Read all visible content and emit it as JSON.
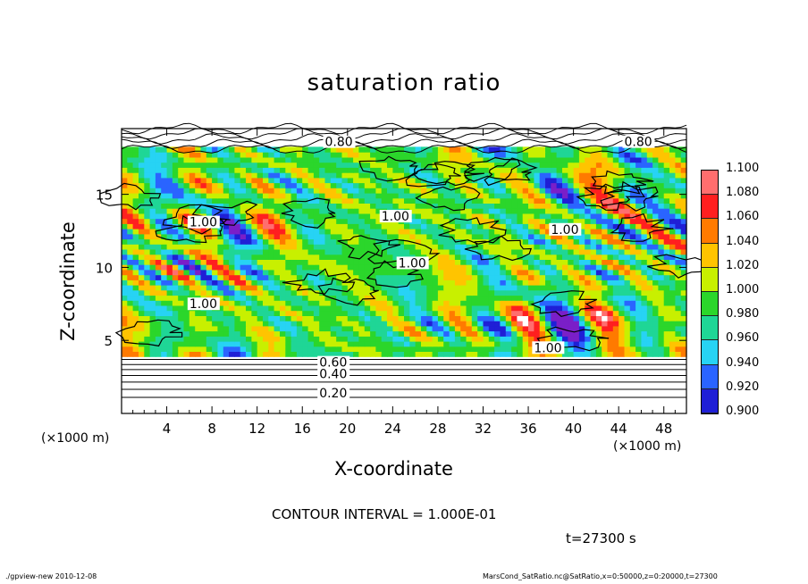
{
  "chart_data": {
    "type": "heatmap",
    "title": "saturation ratio",
    "xlabel": "X-coordinate",
    "ylabel": "Z-coordinate",
    "x_scale_note_left": "(×1000 m)",
    "x_scale_note_right": "(×1000 m)",
    "xlim": [
      0,
      50
    ],
    "ylim": [
      0,
      19.5
    ],
    "x_ticks": [
      "4",
      "8",
      "12",
      "16",
      "20",
      "24",
      "28",
      "32",
      "36",
      "40",
      "44",
      "48"
    ],
    "y_ticks": [
      "5",
      "10",
      "15"
    ],
    "colorbar": {
      "levels": [
        "1.100",
        "1.080",
        "1.060",
        "1.040",
        "1.020",
        "1.000",
        "0.980",
        "0.960",
        "0.940",
        "0.920",
        "0.900"
      ],
      "colors": [
        "#ff6e6e",
        "#ff1f1f",
        "#ff7a00",
        "#ffc400",
        "#c8f000",
        "#2bd62b",
        "#1fd696",
        "#27d3f4",
        "#2a64ff",
        "#1f1fd6",
        "#7a1fc8"
      ]
    },
    "contour_labels": [
      "0.80",
      "0.80",
      "1.00",
      "1.00",
      "1.00",
      "1.00",
      "1.00",
      "1.00",
      "0.60",
      "0.40",
      "0.20"
    ],
    "contour_interval": "CONTOUR INTERVAL = 1.000E-01",
    "time": "t=27300 s"
  },
  "footer": {
    "left": "./gpview-new 2010-12-08",
    "right": "MarsCond_SatRatio.nc@SatRatio,x=0:50000,z=0:20000,t=27300"
  }
}
